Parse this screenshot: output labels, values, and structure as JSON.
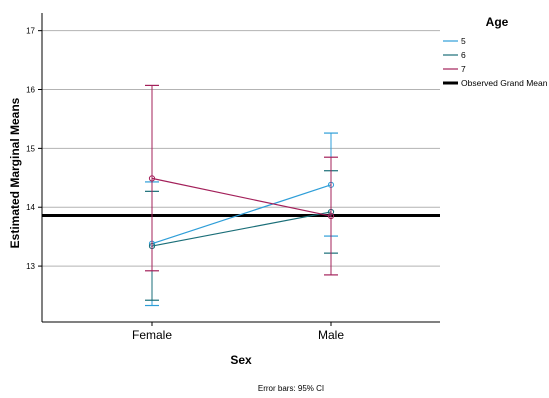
{
  "chart_data": {
    "type": "line",
    "xlabel": "Sex",
    "ylabel": "Estimated Marginal Means",
    "categories": [
      "Female",
      "Male"
    ],
    "ylim": [
      12.05,
      17.3
    ],
    "yticks": [
      "13",
      "14",
      "15",
      "16",
      "17"
    ],
    "grid": true,
    "legend_title": "Age",
    "legend_position": "right",
    "series": [
      {
        "name": "5",
        "color": "#2e9ed8",
        "values": [
          13.38,
          14.38
        ],
        "ci_low": [
          12.33,
          13.51
        ],
        "ci_high": [
          14.43,
          15.26
        ]
      },
      {
        "name": "6",
        "color": "#1a6e78",
        "values": [
          13.34,
          13.92
        ],
        "ci_low": [
          12.42,
          13.22
        ],
        "ci_high": [
          14.27,
          14.62
        ]
      },
      {
        "name": "7",
        "color": "#a3205a",
        "values": [
          14.49,
          13.85
        ],
        "ci_low": [
          12.92,
          12.85
        ],
        "ci_high": [
          16.07,
          14.85
        ]
      }
    ],
    "reference_line": {
      "name": "Observed Grand Mean",
      "value": 13.86,
      "color": "#000000"
    },
    "footnote": "Error bars: 95% CI"
  }
}
